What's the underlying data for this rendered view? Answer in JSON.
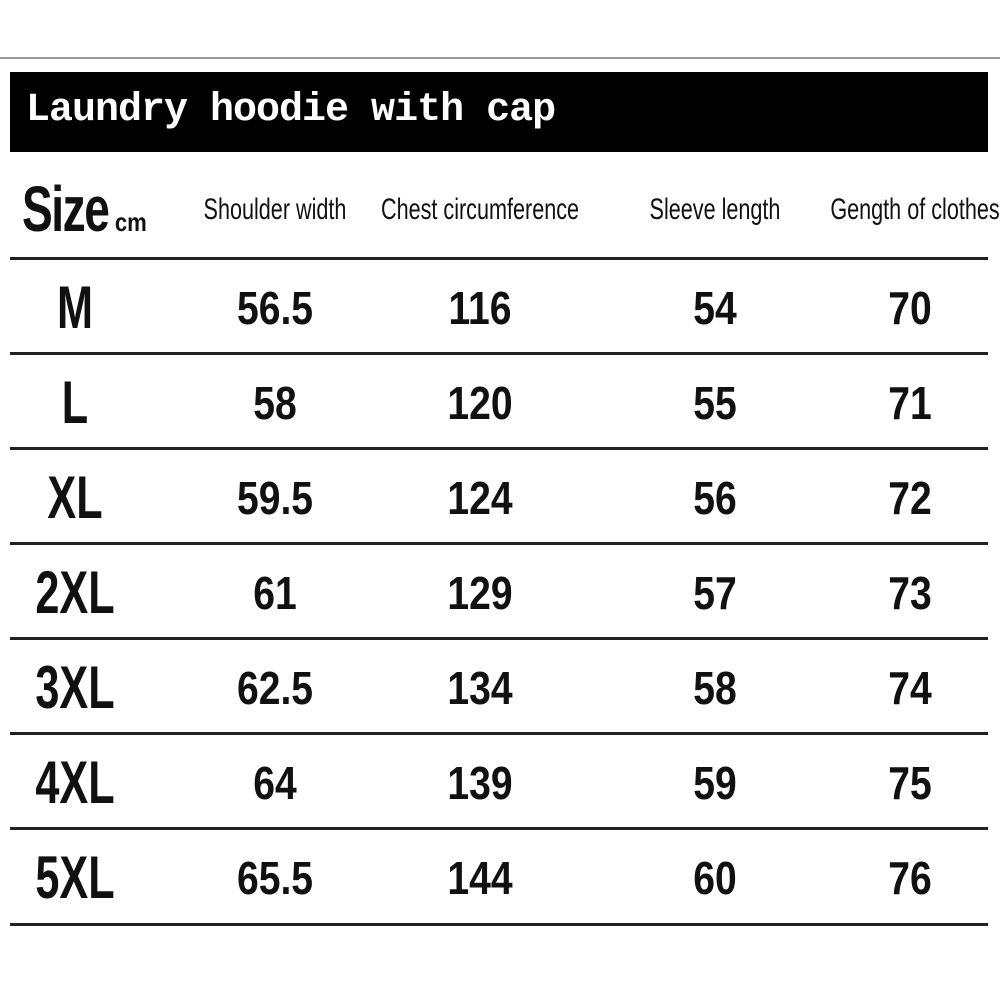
{
  "title": "Laundry hoodie with cap",
  "columns": {
    "size": "Size",
    "unit": "cm",
    "shoulder": "Shoulder width",
    "chest": "Chest circumference",
    "sleeve": "Sleeve length",
    "length": "Gength of clothes"
  },
  "rows": [
    {
      "size": "M",
      "shoulder": "56.5",
      "chest": "116",
      "sleeve": "54",
      "length": "70"
    },
    {
      "size": "L",
      "shoulder": "58",
      "chest": "120",
      "sleeve": "55",
      "length": "71"
    },
    {
      "size": "XL",
      "shoulder": "59.5",
      "chest": "124",
      "sleeve": "56",
      "length": "72"
    },
    {
      "size": "2XL",
      "shoulder": "61",
      "chest": "129",
      "sleeve": "57",
      "length": "73"
    },
    {
      "size": "3XL",
      "shoulder": "62.5",
      "chest": "134",
      "sleeve": "58",
      "length": "74"
    },
    {
      "size": "4XL",
      "shoulder": "64",
      "chest": "139",
      "sleeve": "59",
      "length": "75"
    },
    {
      "size": "5XL",
      "shoulder": "65.5",
      "chest": "144",
      "sleeve": "60",
      "length": "76"
    }
  ]
}
